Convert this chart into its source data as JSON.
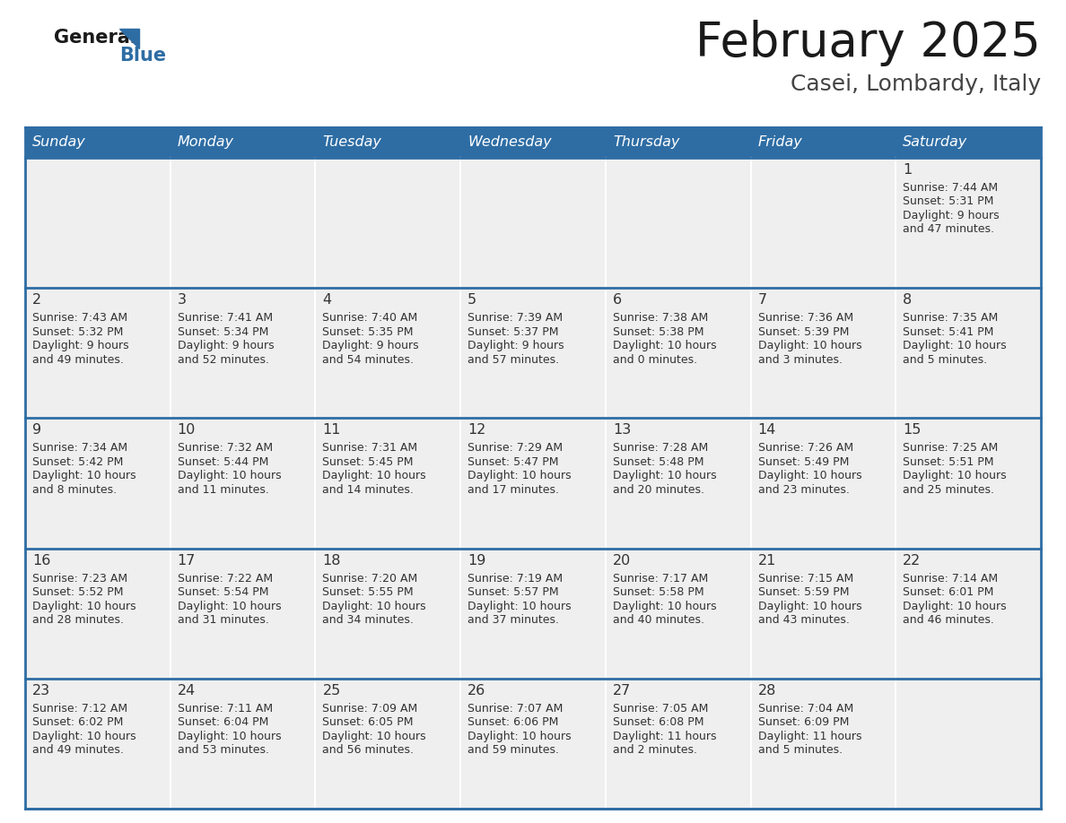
{
  "title": "February 2025",
  "subtitle": "Casei, Lombardy, Italy",
  "header_bg": "#2E6DA4",
  "header_text_color": "#FFFFFF",
  "cell_bg": "#EFEFEF",
  "border_color": "#2E6DA4",
  "text_color": "#333333",
  "day_names": [
    "Sunday",
    "Monday",
    "Tuesday",
    "Wednesday",
    "Thursday",
    "Friday",
    "Saturday"
  ],
  "title_color": "#1a1a1a",
  "subtitle_color": "#444444",
  "logo_general_color": "#1a1a1a",
  "logo_blue_color": "#2E6DA4",
  "logo_triangle_color": "#2E6DA4",
  "days": [
    {
      "date": 1,
      "col": 6,
      "row": 0,
      "sunrise": "7:44 AM",
      "sunset": "5:31 PM",
      "daylight_h": "9 hours",
      "daylight_m": "and 47 minutes."
    },
    {
      "date": 2,
      "col": 0,
      "row": 1,
      "sunrise": "7:43 AM",
      "sunset": "5:32 PM",
      "daylight_h": "9 hours",
      "daylight_m": "and 49 minutes."
    },
    {
      "date": 3,
      "col": 1,
      "row": 1,
      "sunrise": "7:41 AM",
      "sunset": "5:34 PM",
      "daylight_h": "9 hours",
      "daylight_m": "and 52 minutes."
    },
    {
      "date": 4,
      "col": 2,
      "row": 1,
      "sunrise": "7:40 AM",
      "sunset": "5:35 PM",
      "daylight_h": "9 hours",
      "daylight_m": "and 54 minutes."
    },
    {
      "date": 5,
      "col": 3,
      "row": 1,
      "sunrise": "7:39 AM",
      "sunset": "5:37 PM",
      "daylight_h": "9 hours",
      "daylight_m": "and 57 minutes."
    },
    {
      "date": 6,
      "col": 4,
      "row": 1,
      "sunrise": "7:38 AM",
      "sunset": "5:38 PM",
      "daylight_h": "10 hours",
      "daylight_m": "and 0 minutes."
    },
    {
      "date": 7,
      "col": 5,
      "row": 1,
      "sunrise": "7:36 AM",
      "sunset": "5:39 PM",
      "daylight_h": "10 hours",
      "daylight_m": "and 3 minutes."
    },
    {
      "date": 8,
      "col": 6,
      "row": 1,
      "sunrise": "7:35 AM",
      "sunset": "5:41 PM",
      "daylight_h": "10 hours",
      "daylight_m": "and 5 minutes."
    },
    {
      "date": 9,
      "col": 0,
      "row": 2,
      "sunrise": "7:34 AM",
      "sunset": "5:42 PM",
      "daylight_h": "10 hours",
      "daylight_m": "and 8 minutes."
    },
    {
      "date": 10,
      "col": 1,
      "row": 2,
      "sunrise": "7:32 AM",
      "sunset": "5:44 PM",
      "daylight_h": "10 hours",
      "daylight_m": "and 11 minutes."
    },
    {
      "date": 11,
      "col": 2,
      "row": 2,
      "sunrise": "7:31 AM",
      "sunset": "5:45 PM",
      "daylight_h": "10 hours",
      "daylight_m": "and 14 minutes."
    },
    {
      "date": 12,
      "col": 3,
      "row": 2,
      "sunrise": "7:29 AM",
      "sunset": "5:47 PM",
      "daylight_h": "10 hours",
      "daylight_m": "and 17 minutes."
    },
    {
      "date": 13,
      "col": 4,
      "row": 2,
      "sunrise": "7:28 AM",
      "sunset": "5:48 PM",
      "daylight_h": "10 hours",
      "daylight_m": "and 20 minutes."
    },
    {
      "date": 14,
      "col": 5,
      "row": 2,
      "sunrise": "7:26 AM",
      "sunset": "5:49 PM",
      "daylight_h": "10 hours",
      "daylight_m": "and 23 minutes."
    },
    {
      "date": 15,
      "col": 6,
      "row": 2,
      "sunrise": "7:25 AM",
      "sunset": "5:51 PM",
      "daylight_h": "10 hours",
      "daylight_m": "and 25 minutes."
    },
    {
      "date": 16,
      "col": 0,
      "row": 3,
      "sunrise": "7:23 AM",
      "sunset": "5:52 PM",
      "daylight_h": "10 hours",
      "daylight_m": "and 28 minutes."
    },
    {
      "date": 17,
      "col": 1,
      "row": 3,
      "sunrise": "7:22 AM",
      "sunset": "5:54 PM",
      "daylight_h": "10 hours",
      "daylight_m": "and 31 minutes."
    },
    {
      "date": 18,
      "col": 2,
      "row": 3,
      "sunrise": "7:20 AM",
      "sunset": "5:55 PM",
      "daylight_h": "10 hours",
      "daylight_m": "and 34 minutes."
    },
    {
      "date": 19,
      "col": 3,
      "row": 3,
      "sunrise": "7:19 AM",
      "sunset": "5:57 PM",
      "daylight_h": "10 hours",
      "daylight_m": "and 37 minutes."
    },
    {
      "date": 20,
      "col": 4,
      "row": 3,
      "sunrise": "7:17 AM",
      "sunset": "5:58 PM",
      "daylight_h": "10 hours",
      "daylight_m": "and 40 minutes."
    },
    {
      "date": 21,
      "col": 5,
      "row": 3,
      "sunrise": "7:15 AM",
      "sunset": "5:59 PM",
      "daylight_h": "10 hours",
      "daylight_m": "and 43 minutes."
    },
    {
      "date": 22,
      "col": 6,
      "row": 3,
      "sunrise": "7:14 AM",
      "sunset": "6:01 PM",
      "daylight_h": "10 hours",
      "daylight_m": "and 46 minutes."
    },
    {
      "date": 23,
      "col": 0,
      "row": 4,
      "sunrise": "7:12 AM",
      "sunset": "6:02 PM",
      "daylight_h": "10 hours",
      "daylight_m": "and 49 minutes."
    },
    {
      "date": 24,
      "col": 1,
      "row": 4,
      "sunrise": "7:11 AM",
      "sunset": "6:04 PM",
      "daylight_h": "10 hours",
      "daylight_m": "and 53 minutes."
    },
    {
      "date": 25,
      "col": 2,
      "row": 4,
      "sunrise": "7:09 AM",
      "sunset": "6:05 PM",
      "daylight_h": "10 hours",
      "daylight_m": "and 56 minutes."
    },
    {
      "date": 26,
      "col": 3,
      "row": 4,
      "sunrise": "7:07 AM",
      "sunset": "6:06 PM",
      "daylight_h": "10 hours",
      "daylight_m": "and 59 minutes."
    },
    {
      "date": 27,
      "col": 4,
      "row": 4,
      "sunrise": "7:05 AM",
      "sunset": "6:08 PM",
      "daylight_h": "11 hours",
      "daylight_m": "and 2 minutes."
    },
    {
      "date": 28,
      "col": 5,
      "row": 4,
      "sunrise": "7:04 AM",
      "sunset": "6:09 PM",
      "daylight_h": "11 hours",
      "daylight_m": "and 5 minutes."
    }
  ]
}
